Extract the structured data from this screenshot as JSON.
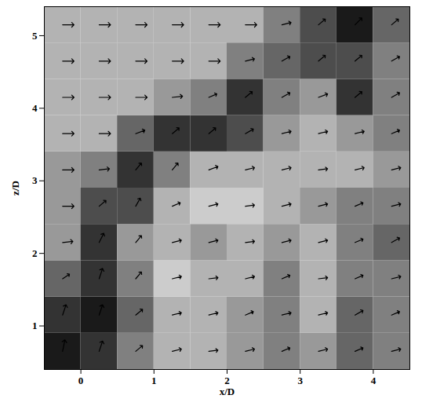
{
  "chart_data": {
    "type": "vector_field",
    "xlabel": "x/D",
    "ylabel": "z/D",
    "xlim": [
      -0.5,
      4.5
    ],
    "ylim": [
      0.4,
      5.4
    ],
    "xticks": [
      0,
      1,
      2,
      3,
      4
    ],
    "yticks": [
      1,
      2,
      3,
      4,
      5
    ],
    "color": "#000000",
    "x": [
      -0.25,
      0.25,
      0.75,
      1.25,
      1.75,
      2.25,
      2.75,
      3.25,
      3.75,
      4.25
    ],
    "z": [
      0.65,
      1.15,
      1.65,
      2.15,
      2.65,
      3.15,
      3.65,
      4.15,
      4.65,
      5.15
    ],
    "u": [
      [
        0.2,
        0.3,
        0.6,
        0.8,
        0.8,
        0.8,
        0.7,
        0.8,
        0.7,
        0.8
      ],
      [
        0.3,
        0.3,
        0.6,
        0.8,
        0.8,
        0.7,
        0.8,
        0.8,
        0.7,
        0.7
      ],
      [
        0.6,
        0.3,
        0.5,
        0.8,
        0.8,
        0.8,
        0.7,
        0.8,
        0.7,
        0.8
      ],
      [
        0.9,
        0.4,
        0.5,
        0.8,
        0.8,
        0.8,
        0.8,
        0.8,
        0.7,
        0.7
      ],
      [
        1.0,
        0.6,
        0.4,
        0.7,
        0.8,
        0.8,
        0.8,
        0.8,
        0.7,
        0.8
      ],
      [
        1.0,
        0.9,
        0.5,
        0.5,
        0.8,
        0.8,
        0.8,
        0.8,
        0.8,
        0.8
      ],
      [
        1.0,
        1.0,
        0.8,
        0.6,
        0.6,
        0.7,
        0.8,
        0.8,
        0.8,
        0.7
      ],
      [
        1.0,
        1.0,
        1.0,
        0.9,
        0.7,
        0.6,
        0.7,
        0.8,
        0.6,
        0.7
      ],
      [
        1.0,
        1.0,
        1.0,
        1.0,
        1.0,
        0.8,
        0.7,
        0.6,
        0.6,
        0.7
      ],
      [
        1.0,
        1.0,
        1.0,
        1.0,
        1.0,
        1.0,
        0.8,
        0.6,
        0.6,
        0.6
      ]
    ],
    "w": [
      [
        1.0,
        0.9,
        0.5,
        0.2,
        0.1,
        0.2,
        0.3,
        0.2,
        0.3,
        0.2
      ],
      [
        0.9,
        0.9,
        0.5,
        0.2,
        0.2,
        0.3,
        0.2,
        0.2,
        0.4,
        0.3
      ],
      [
        0.4,
        0.9,
        0.6,
        0.2,
        0.1,
        0.2,
        0.3,
        0.1,
        0.3,
        0.2
      ],
      [
        0.1,
        0.8,
        0.6,
        0.2,
        0.2,
        0.1,
        0.2,
        0.2,
        0.3,
        0.4
      ],
      [
        0.0,
        0.5,
        0.7,
        0.3,
        0.2,
        0.1,
        0.2,
        0.2,
        0.3,
        0.2
      ],
      [
        0.0,
        0.1,
        0.6,
        0.6,
        0.3,
        0.2,
        0.2,
        0.1,
        0.2,
        0.2
      ],
      [
        0.0,
        0.0,
        0.3,
        0.5,
        0.5,
        0.4,
        0.2,
        0.2,
        0.2,
        0.3
      ],
      [
        0.0,
        0.0,
        0.0,
        0.1,
        0.3,
        0.5,
        0.4,
        0.3,
        0.5,
        0.4
      ],
      [
        0.0,
        0.0,
        0.0,
        0.0,
        0.0,
        0.2,
        0.4,
        0.5,
        0.5,
        0.4
      ],
      [
        0.0,
        0.0,
        0.0,
        0.0,
        0.0,
        0.0,
        0.2,
        0.5,
        0.6,
        0.5
      ]
    ],
    "shade": [
      [
        0.9,
        0.8,
        0.5,
        0.3,
        0.3,
        0.4,
        0.5,
        0.4,
        0.6,
        0.5
      ],
      [
        0.8,
        0.9,
        0.6,
        0.3,
        0.3,
        0.4,
        0.5,
        0.3,
        0.6,
        0.5
      ],
      [
        0.6,
        0.8,
        0.5,
        0.2,
        0.3,
        0.3,
        0.5,
        0.3,
        0.5,
        0.5
      ],
      [
        0.4,
        0.8,
        0.4,
        0.3,
        0.4,
        0.3,
        0.4,
        0.3,
        0.5,
        0.6
      ],
      [
        0.4,
        0.7,
        0.7,
        0.3,
        0.2,
        0.2,
        0.3,
        0.4,
        0.5,
        0.5
      ],
      [
        0.4,
        0.5,
        0.8,
        0.5,
        0.3,
        0.3,
        0.3,
        0.3,
        0.3,
        0.4
      ],
      [
        0.3,
        0.3,
        0.6,
        0.8,
        0.8,
        0.7,
        0.4,
        0.3,
        0.4,
        0.5
      ],
      [
        0.3,
        0.3,
        0.3,
        0.4,
        0.5,
        0.8,
        0.5,
        0.4,
        0.8,
        0.5
      ],
      [
        0.3,
        0.3,
        0.3,
        0.3,
        0.3,
        0.5,
        0.6,
        0.7,
        0.7,
        0.5
      ],
      [
        0.3,
        0.3,
        0.3,
        0.3,
        0.3,
        0.3,
        0.5,
        0.7,
        0.9,
        0.6
      ]
    ],
    "shade_range": [
      0,
      1
    ]
  }
}
